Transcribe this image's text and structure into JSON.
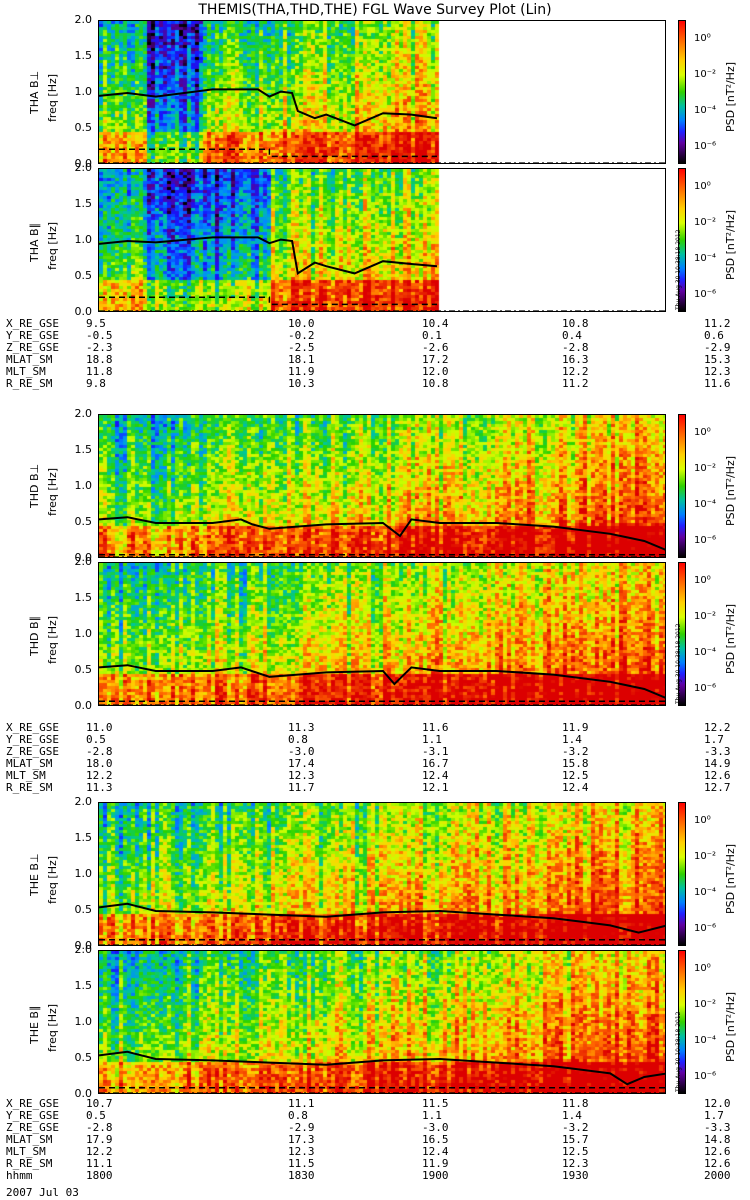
{
  "title": "THEMIS(THA,THD,THE) FGL Wave Survey Plot (Lin)",
  "y_ticks": [
    "0.0",
    "0.5",
    "1.0",
    "1.5",
    "2.0"
  ],
  "colorbar": {
    "label": "PSD [nT²/Hz]",
    "ticks": [
      "10⁰",
      "10⁻²",
      "10⁻⁴",
      "10⁻⁶"
    ],
    "stamp": "Thu Aug 30 10:38:18 2012"
  },
  "colors": {
    "high": "#ff0000",
    "mid": "#ffd000",
    "low_mid": "#2fd000",
    "low": "#0000ff",
    "floor": "#000000",
    "background": "#ffffff"
  },
  "date": "2007 Jul 03",
  "chart_data": [
    {
      "type": "heatmap",
      "probe": "THA",
      "component": "B⊥",
      "ylabel": "THA B⊥",
      "yunit": "freq [Hz]",
      "ylim": [
        0,
        2.0
      ],
      "data_coverage": [
        0,
        0.595
      ],
      "low_psd_band": [
        0.08,
        0.18
      ],
      "solid_line": {
        "frac": [
          0,
          0.05,
          0.1,
          0.2,
          0.28,
          0.3,
          0.32,
          0.34,
          0.35,
          0.38,
          0.4,
          0.45,
          0.5,
          0.55,
          0.595
        ],
        "freq": [
          0.96,
          1.0,
          0.95,
          1.05,
          1.05,
          0.95,
          1.02,
          1.0,
          0.75,
          0.65,
          0.7,
          0.55,
          0.72,
          0.7,
          0.65
        ]
      },
      "dashed_line": {
        "frac": [
          0,
          0.3,
          0.3,
          0.595
        ],
        "freq": [
          0.22,
          0.22,
          0.12,
          0.12
        ]
      }
    },
    {
      "type": "heatmap",
      "probe": "THA",
      "component": "B∥",
      "ylabel": "THA B∥",
      "yunit": "freq [Hz]",
      "ylim": [
        0,
        2.0
      ],
      "data_coverage": [
        0,
        0.595
      ],
      "low_psd_band": [
        0.08,
        0.3
      ],
      "solid_line": {
        "frac": [
          0,
          0.05,
          0.1,
          0.2,
          0.28,
          0.3,
          0.32,
          0.34,
          0.35,
          0.38,
          0.4,
          0.45,
          0.5,
          0.55,
          0.595
        ],
        "freq": [
          0.96,
          1.0,
          0.98,
          1.05,
          1.05,
          0.97,
          1.02,
          1.0,
          0.55,
          0.7,
          0.65,
          0.55,
          0.72,
          0.68,
          0.65
        ]
      },
      "dashed_line": {
        "frac": [
          0,
          0.3,
          0.3,
          0.595
        ],
        "freq": [
          0.22,
          0.22,
          0.12,
          0.12
        ]
      }
    },
    {
      "type": "heatmap",
      "probe": "THD",
      "component": "B⊥",
      "ylabel": "THD B⊥",
      "yunit": "freq [Hz]",
      "ylim": [
        0,
        2.0
      ],
      "data_coverage": [
        0,
        1.0
      ],
      "solid_line": {
        "frac": [
          0,
          0.05,
          0.1,
          0.2,
          0.25,
          0.27,
          0.3,
          0.4,
          0.5,
          0.53,
          0.55,
          0.6,
          0.7,
          0.8,
          0.9,
          0.93,
          0.96,
          1.0
        ],
        "freq": [
          0.55,
          0.58,
          0.5,
          0.5,
          0.55,
          0.48,
          0.42,
          0.48,
          0.5,
          0.32,
          0.55,
          0.5,
          0.5,
          0.45,
          0.35,
          0.3,
          0.25,
          0.12
        ]
      },
      "dashed_line": {
        "frac": [
          0,
          1.0
        ],
        "freq": [
          0.06,
          0.06
        ]
      }
    },
    {
      "type": "heatmap",
      "probe": "THD",
      "component": "B∥",
      "ylabel": "THD B∥",
      "yunit": "freq [Hz]",
      "ylim": [
        0,
        2.0
      ],
      "data_coverage": [
        0,
        1.0
      ],
      "solid_line": {
        "frac": [
          0,
          0.05,
          0.1,
          0.2,
          0.25,
          0.3,
          0.4,
          0.5,
          0.52,
          0.55,
          0.6,
          0.7,
          0.8,
          0.9,
          0.93,
          0.96,
          1.0
        ],
        "freq": [
          0.55,
          0.58,
          0.5,
          0.5,
          0.55,
          0.42,
          0.48,
          0.5,
          0.32,
          0.55,
          0.5,
          0.5,
          0.45,
          0.35,
          0.3,
          0.25,
          0.12
        ]
      },
      "dashed_line": {
        "frac": [
          0,
          1.0
        ],
        "freq": [
          0.08,
          0.08
        ]
      }
    },
    {
      "type": "heatmap",
      "probe": "THE",
      "component": "B⊥",
      "ylabel": "THE B⊥",
      "yunit": "freq [Hz]",
      "ylim": [
        0,
        2.0
      ],
      "data_coverage": [
        0,
        1.0
      ],
      "solid_line": {
        "frac": [
          0,
          0.05,
          0.1,
          0.2,
          0.3,
          0.4,
          0.5,
          0.6,
          0.7,
          0.8,
          0.85,
          0.9,
          0.95,
          1.0
        ],
        "freq": [
          0.55,
          0.6,
          0.5,
          0.48,
          0.45,
          0.42,
          0.48,
          0.5,
          0.45,
          0.4,
          0.35,
          0.3,
          0.2,
          0.3
        ]
      },
      "dashed_line": {
        "frac": [
          0,
          1.0
        ],
        "freq": [
          0.1,
          0.1
        ]
      }
    },
    {
      "type": "heatmap",
      "probe": "THE",
      "component": "B∥",
      "ylabel": "THE B∥",
      "yunit": "freq [Hz]",
      "ylim": [
        0,
        2.0
      ],
      "data_coverage": [
        0,
        1.0
      ],
      "solid_line": {
        "frac": [
          0,
          0.05,
          0.1,
          0.2,
          0.3,
          0.4,
          0.5,
          0.6,
          0.7,
          0.8,
          0.85,
          0.9,
          0.93,
          0.96,
          1.0
        ],
        "freq": [
          0.55,
          0.6,
          0.5,
          0.48,
          0.45,
          0.42,
          0.48,
          0.5,
          0.45,
          0.4,
          0.35,
          0.3,
          0.15,
          0.25,
          0.3
        ]
      },
      "dashed_line": {
        "frac": [
          0,
          1.0
        ],
        "freq": [
          0.1,
          0.1
        ]
      }
    }
  ],
  "ephemeris": [
    {
      "probe": "THA",
      "rows": [
        {
          "label": "X_RE_GSE",
          "values": [
            "9.5",
            "10.0",
            "10.4",
            "10.8",
            "11.2"
          ]
        },
        {
          "label": "Y_RE_GSE",
          "values": [
            "-0.5",
            "-0.2",
            "0.1",
            "0.4",
            "0.6"
          ]
        },
        {
          "label": "Z_RE_GSE",
          "values": [
            "-2.3",
            "-2.5",
            "-2.6",
            "-2.8",
            "-2.9"
          ]
        },
        {
          "label": "MLAT_SM",
          "values": [
            "18.8",
            "18.1",
            "17.2",
            "16.3",
            "15.3"
          ]
        },
        {
          "label": "MLT_SM",
          "values": [
            "11.8",
            "11.9",
            "12.0",
            "12.2",
            "12.3"
          ]
        },
        {
          "label": "R_RE_SM",
          "values": [
            "9.8",
            "10.3",
            "10.8",
            "11.2",
            "11.6"
          ]
        }
      ]
    },
    {
      "probe": "THD",
      "rows": [
        {
          "label": "X_RE_GSE",
          "values": [
            "11.0",
            "11.3",
            "11.6",
            "11.9",
            "12.2"
          ]
        },
        {
          "label": "Y_RE_GSE",
          "values": [
            "0.5",
            "0.8",
            "1.1",
            "1.4",
            "1.7"
          ]
        },
        {
          "label": "Z_RE_GSE",
          "values": [
            "-2.8",
            "-3.0",
            "-3.1",
            "-3.2",
            "-3.3"
          ]
        },
        {
          "label": "MLAT_SM",
          "values": [
            "18.0",
            "17.4",
            "16.7",
            "15.8",
            "14.9"
          ]
        },
        {
          "label": "MLT_SM",
          "values": [
            "12.2",
            "12.3",
            "12.4",
            "12.5",
            "12.6"
          ]
        },
        {
          "label": "R_RE_SM",
          "values": [
            "11.3",
            "11.7",
            "12.1",
            "12.4",
            "12.7"
          ]
        }
      ]
    },
    {
      "probe": "THE",
      "rows": [
        {
          "label": "X_RE_GSE",
          "values": [
            "10.7",
            "11.1",
            "11.5",
            "11.8",
            "12.0"
          ]
        },
        {
          "label": "Y_RE_GSE",
          "values": [
            "0.5",
            "0.8",
            "1.1",
            "1.4",
            "1.7"
          ]
        },
        {
          "label": "Z_RE_GSE",
          "values": [
            "-2.8",
            "-2.9",
            "-3.0",
            "-3.2",
            "-3.3"
          ]
        },
        {
          "label": "MLAT_SM",
          "values": [
            "17.9",
            "17.3",
            "16.5",
            "15.7",
            "14.8"
          ]
        },
        {
          "label": "MLT_SM",
          "values": [
            "12.2",
            "12.3",
            "12.4",
            "12.5",
            "12.6"
          ]
        },
        {
          "label": "R_RE_SM",
          "values": [
            "11.1",
            "11.5",
            "11.9",
            "12.3",
            "12.6"
          ]
        },
        {
          "label": "hhmm",
          "values": [
            "1800",
            "1830",
            "1900",
            "1930",
            "2000"
          ]
        }
      ]
    }
  ]
}
